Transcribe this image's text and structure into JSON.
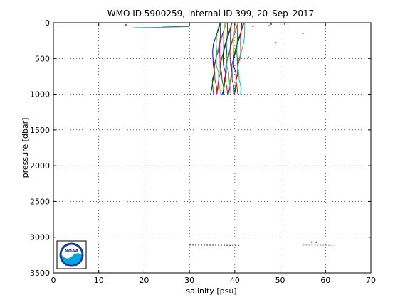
{
  "chart_data": {
    "type": "line",
    "title": "WMO ID 5900259, internal ID 399, 20–Sep–2017",
    "xlabel": "salinity [psu]",
    "ylabel": "pressure [dbar]",
    "xlim": [
      0,
      70
    ],
    "ylim": [
      0,
      3500
    ],
    "y_reversed": true,
    "grid": true,
    "grid_style": "dotted",
    "xticks": [
      0,
      10,
      20,
      30,
      40,
      50,
      60,
      70
    ],
    "yticks": [
      0,
      500,
      1000,
      1500,
      2000,
      2500,
      3000,
      3500
    ],
    "profile_count": 18,
    "profile_spacing_psu": 0.35,
    "profile_base": [
      {
        "pressure": 0,
        "salinity": 36.5
      },
      {
        "pressure": 100,
        "salinity": 36.2
      },
      {
        "pressure": 200,
        "salinity": 35.9
      },
      {
        "pressure": 300,
        "salinity": 35.6
      },
      {
        "pressure": 400,
        "salinity": 35.4
      },
      {
        "pressure": 500,
        "salinity": 35.2
      },
      {
        "pressure": 600,
        "salinity": 35.0
      },
      {
        "pressure": 700,
        "salinity": 35.2
      },
      {
        "pressure": 800,
        "salinity": 35.0
      },
      {
        "pressure": 900,
        "salinity": 35.1
      },
      {
        "pressure": 1000,
        "salinity": 35.0
      }
    ],
    "outlier_segments": [
      {
        "color": "#1fa8b8",
        "points": [
          [
            17.5,
            70
          ],
          [
            23,
            65
          ],
          [
            30,
            55
          ]
        ]
      },
      {
        "color": "#6a4fb0",
        "points": [
          [
            24,
            60
          ],
          [
            30,
            50
          ]
        ]
      },
      {
        "color": "#333333",
        "points": [
          [
            30,
            3110
          ],
          [
            41,
            3115
          ]
        ]
      },
      {
        "color": "#888888",
        "points": [
          [
            55,
            3110
          ],
          [
            62,
            3115
          ]
        ]
      }
    ],
    "outlier_points": [
      {
        "x": 16,
        "y": 30,
        "color": "#c04040"
      },
      {
        "x": 41.5,
        "y": 40,
        "color": "#cc3333"
      },
      {
        "x": 44,
        "y": 50,
        "color": "#3355cc"
      },
      {
        "x": 47.5,
        "y": 40,
        "color": "#cc8833"
      },
      {
        "x": 48,
        "y": 20,
        "color": "#884488"
      },
      {
        "x": 51,
        "y": 20,
        "color": "#448844"
      },
      {
        "x": 43,
        "y": 480,
        "color": "#999999"
      },
      {
        "x": 49,
        "y": 280,
        "color": "#aa5555"
      },
      {
        "x": 55,
        "y": 150,
        "color": "#5555aa"
      },
      {
        "x": 57,
        "y": 3070,
        "color": "#444444"
      },
      {
        "x": 58,
        "y": 3070,
        "color": "#444444"
      }
    ],
    "colors": [
      "#0000ff",
      "#008000",
      "#ff0000",
      "#00bfbf",
      "#bf00bf",
      "#bfbf00",
      "#404040"
    ]
  },
  "logo": {
    "text": "NOAA",
    "background": "#00a4e4",
    "ring": "#1d3c8c"
  }
}
